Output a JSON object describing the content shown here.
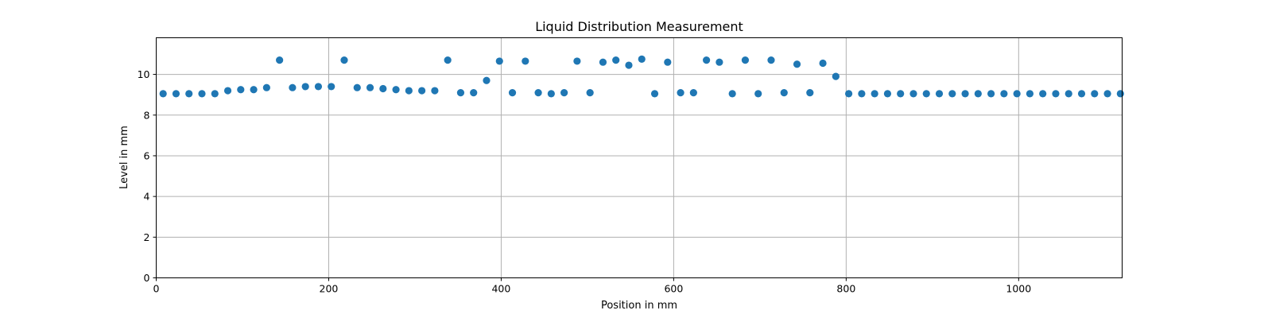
{
  "chart_data": {
    "type": "scatter",
    "title": "Liquid Distribution Measurement",
    "xlabel": "Position in mm",
    "ylabel": "Level in mm",
    "xlim": [
      0,
      1120
    ],
    "ylim": [
      0,
      11.8
    ],
    "xticks": [
      0,
      200,
      400,
      600,
      800,
      1000
    ],
    "yticks": [
      0,
      2,
      4,
      6,
      8,
      10
    ],
    "grid": true,
    "marker_color": "#1f77b4",
    "series": [
      {
        "points": [
          [
            8,
            9.05
          ],
          [
            23,
            9.05
          ],
          [
            38,
            9.05
          ],
          [
            53,
            9.05
          ],
          [
            68,
            9.05
          ],
          [
            83,
            9.2
          ],
          [
            98,
            9.25
          ],
          [
            113,
            9.25
          ],
          [
            128,
            9.35
          ],
          [
            143,
            10.7
          ],
          [
            158,
            9.35
          ],
          [
            173,
            9.4
          ],
          [
            188,
            9.4
          ],
          [
            203,
            9.4
          ],
          [
            218,
            10.7
          ],
          [
            233,
            9.35
          ],
          [
            248,
            9.35
          ],
          [
            263,
            9.3
          ],
          [
            278,
            9.25
          ],
          [
            293,
            9.2
          ],
          [
            308,
            9.2
          ],
          [
            323,
            9.2
          ],
          [
            338,
            10.7
          ],
          [
            353,
            9.1
          ],
          [
            368,
            9.1
          ],
          [
            383,
            9.7
          ],
          [
            398,
            10.65
          ],
          [
            413,
            9.1
          ],
          [
            428,
            10.65
          ],
          [
            443,
            9.1
          ],
          [
            458,
            9.05
          ],
          [
            473,
            9.1
          ],
          [
            488,
            10.65
          ],
          [
            503,
            9.1
          ],
          [
            518,
            10.6
          ],
          [
            533,
            10.7
          ],
          [
            548,
            10.45
          ],
          [
            563,
            10.75
          ],
          [
            578,
            9.05
          ],
          [
            593,
            10.6
          ],
          [
            608,
            9.1
          ],
          [
            623,
            9.1
          ],
          [
            638,
            10.7
          ],
          [
            653,
            10.6
          ],
          [
            668,
            9.05
          ],
          [
            683,
            10.7
          ],
          [
            698,
            9.05
          ],
          [
            713,
            10.7
          ],
          [
            728,
            9.1
          ],
          [
            743,
            10.5
          ],
          [
            758,
            9.1
          ],
          [
            773,
            10.55
          ],
          [
            788,
            9.9
          ],
          [
            803,
            9.05
          ],
          [
            818,
            9.05
          ],
          [
            833,
            9.05
          ],
          [
            848,
            9.05
          ],
          [
            863,
            9.05
          ],
          [
            878,
            9.05
          ],
          [
            893,
            9.05
          ],
          [
            908,
            9.05
          ],
          [
            923,
            9.05
          ],
          [
            938,
            9.05
          ],
          [
            953,
            9.05
          ],
          [
            968,
            9.05
          ],
          [
            983,
            9.05
          ],
          [
            998,
            9.05
          ],
          [
            1013,
            9.05
          ],
          [
            1028,
            9.05
          ],
          [
            1043,
            9.05
          ],
          [
            1058,
            9.05
          ],
          [
            1073,
            9.05
          ],
          [
            1088,
            9.05
          ],
          [
            1103,
            9.05
          ],
          [
            1118,
            9.05
          ]
        ]
      }
    ]
  }
}
